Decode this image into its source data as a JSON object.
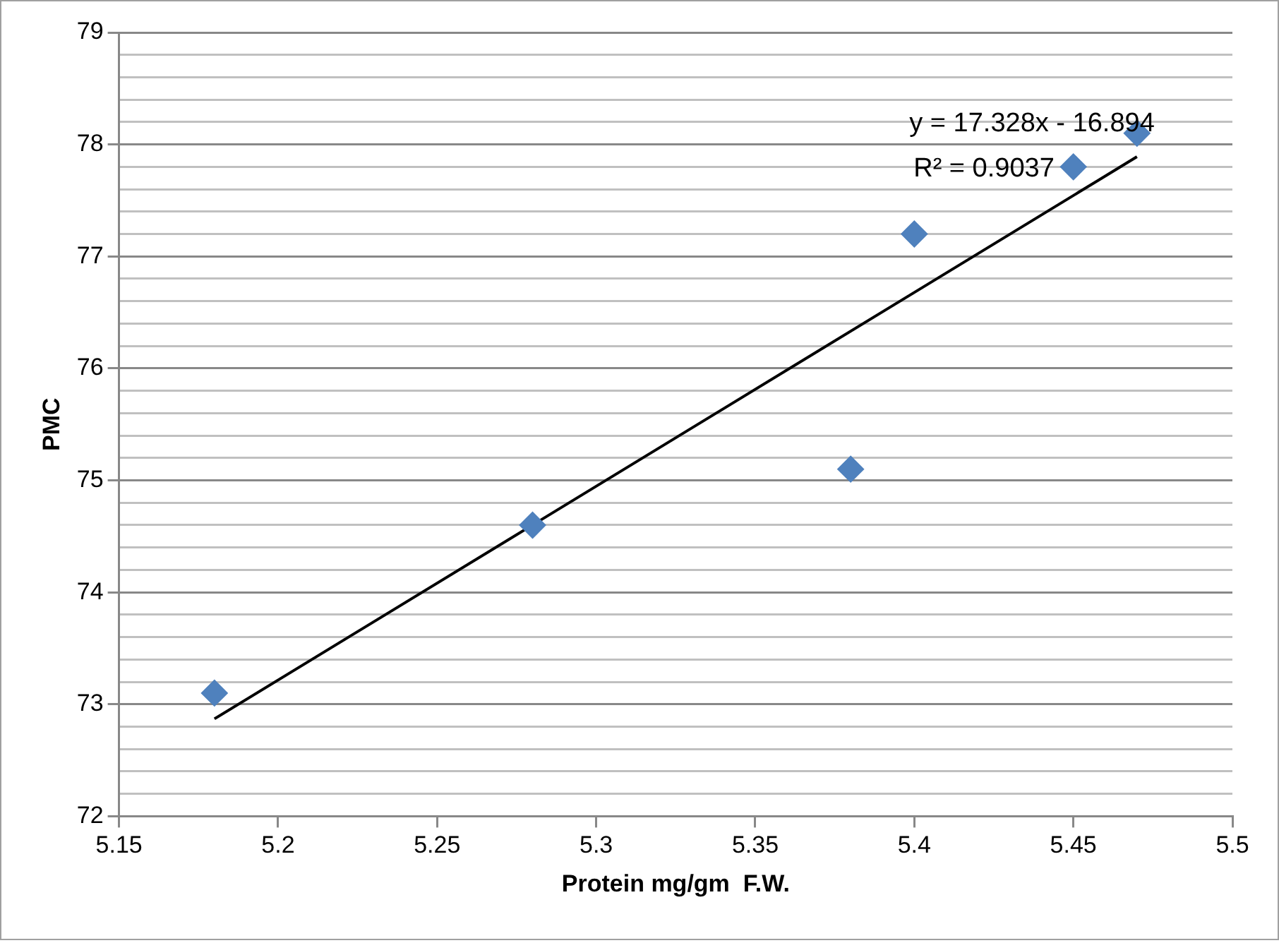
{
  "chart_data": {
    "type": "scatter",
    "xlabel": "Protein mg/gm  F.W.",
    "ylabel": "PMC",
    "xlim": [
      5.15,
      5.5
    ],
    "xticks": [
      5.15,
      5.2,
      5.25,
      5.3,
      5.35,
      5.4,
      5.45,
      5.5
    ],
    "ylim": [
      72,
      79
    ],
    "yticks": [
      72,
      {
        "value": 72.2,
        "label": null
      },
      {
        "value": 72.4,
        "label": null
      },
      {
        "value": 72.6,
        "label": null
      },
      {
        "value": 72.8,
        "label": null
      },
      73,
      {
        "value": 73.2,
        "label": null
      },
      {
        "value": 73.4,
        "label": null
      },
      {
        "value": 73.6,
        "label": null
      },
      {
        "value": 73.8,
        "label": null
      },
      74,
      {
        "value": 74.2,
        "label": null
      },
      {
        "value": 74.4,
        "label": null
      },
      {
        "value": 74.6,
        "label": null
      },
      {
        "value": 74.8,
        "label": null
      },
      75,
      {
        "value": 75.2,
        "label": null
      },
      {
        "value": 75.4,
        "label": null
      },
      {
        "value": 75.6,
        "label": null
      },
      {
        "value": 75.8,
        "label": null
      },
      76,
      {
        "value": 76.2,
        "label": null
      },
      {
        "value": 76.4,
        "label": null
      },
      {
        "value": 76.6,
        "label": null
      },
      {
        "value": 76.8,
        "label": null
      },
      77,
      {
        "value": 77.2,
        "label": null
      },
      {
        "value": 77.4,
        "label": null
      },
      {
        "value": 77.6,
        "label": null
      },
      {
        "value": 77.8,
        "label": null
      },
      78,
      {
        "value": 78.2,
        "label": null
      },
      {
        "value": 78.4,
        "label": null
      },
      {
        "value": 78.6,
        "label": null
      },
      {
        "value": 78.8,
        "label": null
      },
      79
    ],
    "grid": "y",
    "series": [
      {
        "marker": "diamond",
        "color": "#4f81bd",
        "x": [
          5.18,
          5.28,
          5.38,
          5.4,
          5.45,
          5.47
        ],
        "values": [
          73.1,
          74.6,
          75.1,
          77.2,
          77.8,
          78.1
        ]
      },
      {
        "type": "line",
        "marker": "none",
        "color": "#000000",
        "x": [
          5.18,
          5.47
        ],
        "values": [
          72.87,
          77.89
        ]
      }
    ],
    "annotations": [
      "y = 17.328x - 16.894",
      "R² = 0.9037"
    ]
  }
}
